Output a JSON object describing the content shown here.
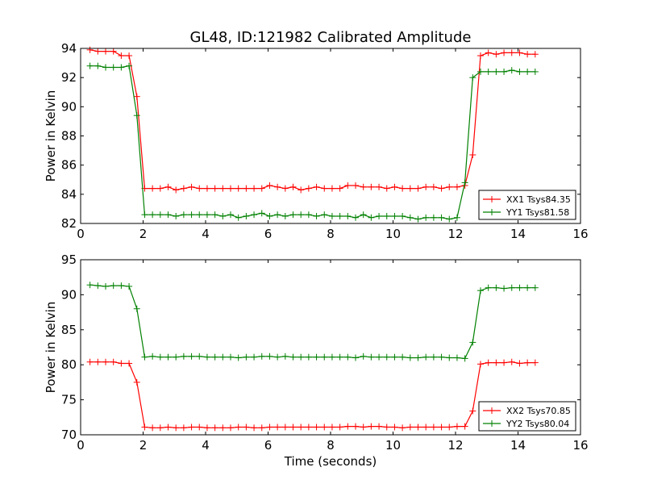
{
  "title": "GL48, ID:121982 Calibrated Amplitude",
  "colors": {
    "red": "#ff0000",
    "green": "#008000"
  },
  "chart_data": [
    {
      "type": "line",
      "xlabel": "",
      "ylabel": "Power in Kelvin",
      "xlim": [
        0,
        16
      ],
      "ylim": [
        82,
        94
      ],
      "xticks": [
        "0",
        "2",
        "4",
        "6",
        "8",
        "10",
        "12",
        "14",
        "16"
      ],
      "yticks": [
        "82",
        "84",
        "86",
        "88",
        "90",
        "92",
        "94"
      ],
      "legend_position": "lower-right",
      "x": [
        0.3,
        0.55,
        0.8,
        1.05,
        1.3,
        1.55,
        1.8,
        2.05,
        2.3,
        2.55,
        2.8,
        3.05,
        3.3,
        3.55,
        3.8,
        4.05,
        4.3,
        4.55,
        4.8,
        5.05,
        5.3,
        5.55,
        5.8,
        6.05,
        6.3,
        6.55,
        6.8,
        7.05,
        7.3,
        7.55,
        7.8,
        8.05,
        8.3,
        8.55,
        8.8,
        9.05,
        9.3,
        9.55,
        9.8,
        10.05,
        10.3,
        10.55,
        10.8,
        11.05,
        11.3,
        11.55,
        11.8,
        12.05,
        12.3,
        12.55,
        12.8,
        13.05,
        13.3,
        13.55,
        13.8,
        14.05,
        14.3,
        14.55
      ],
      "series": [
        {
          "name": "XX1 Tsys84.35",
          "color": "red",
          "values": [
            93.9,
            93.8,
            93.8,
            93.8,
            93.5,
            93.5,
            90.7,
            84.4,
            84.4,
            84.4,
            84.5,
            84.3,
            84.4,
            84.5,
            84.4,
            84.4,
            84.4,
            84.4,
            84.4,
            84.4,
            84.4,
            84.4,
            84.4,
            84.6,
            84.5,
            84.4,
            84.5,
            84.3,
            84.4,
            84.5,
            84.4,
            84.4,
            84.4,
            84.6,
            84.6,
            84.5,
            84.5,
            84.5,
            84.4,
            84.5,
            84.4,
            84.4,
            84.4,
            84.5,
            84.5,
            84.4,
            84.5,
            84.5,
            84.6,
            86.7,
            93.5,
            93.7,
            93.6,
            93.7,
            93.7,
            93.7,
            93.6,
            93.6
          ]
        },
        {
          "name": "YY1 Tsys81.58",
          "color": "green",
          "values": [
            92.8,
            92.8,
            92.7,
            92.7,
            92.7,
            92.8,
            89.4,
            82.6,
            82.6,
            82.6,
            82.6,
            82.5,
            82.6,
            82.6,
            82.6,
            82.6,
            82.6,
            82.5,
            82.6,
            82.4,
            82.5,
            82.6,
            82.7,
            82.5,
            82.6,
            82.5,
            82.6,
            82.6,
            82.6,
            82.5,
            82.6,
            82.5,
            82.5,
            82.5,
            82.4,
            82.6,
            82.4,
            82.5,
            82.5,
            82.5,
            82.5,
            82.4,
            82.3,
            82.4,
            82.4,
            82.4,
            82.3,
            82.4,
            84.8,
            92.0,
            92.4,
            92.4,
            92.4,
            92.4,
            92.5,
            92.4,
            92.4,
            92.4
          ]
        }
      ]
    },
    {
      "type": "line",
      "xlabel": "Time (seconds)",
      "ylabel": "Power in Kelvin",
      "xlim": [
        0,
        16
      ],
      "ylim": [
        70,
        95
      ],
      "xticks": [
        "0",
        "2",
        "4",
        "6",
        "8",
        "10",
        "12",
        "14",
        "16"
      ],
      "yticks": [
        "70",
        "75",
        "80",
        "85",
        "90",
        "95"
      ],
      "legend_position": "lower-right",
      "x": [
        0.3,
        0.55,
        0.8,
        1.05,
        1.3,
        1.55,
        1.8,
        2.05,
        2.3,
        2.55,
        2.8,
        3.05,
        3.3,
        3.55,
        3.8,
        4.05,
        4.3,
        4.55,
        4.8,
        5.05,
        5.3,
        5.55,
        5.8,
        6.05,
        6.3,
        6.55,
        6.8,
        7.05,
        7.3,
        7.55,
        7.8,
        8.05,
        8.3,
        8.55,
        8.8,
        9.05,
        9.3,
        9.55,
        9.8,
        10.05,
        10.3,
        10.55,
        10.8,
        11.05,
        11.3,
        11.55,
        11.8,
        12.05,
        12.3,
        12.55,
        12.8,
        13.05,
        13.3,
        13.55,
        13.8,
        14.05,
        14.3,
        14.55
      ],
      "series": [
        {
          "name": "XX2 Tsys70.85",
          "color": "red",
          "values": [
            80.4,
            80.4,
            80.4,
            80.4,
            80.2,
            80.2,
            77.5,
            71.1,
            71.0,
            71.0,
            71.1,
            71.0,
            71.0,
            71.1,
            71.1,
            71.0,
            71.0,
            71.0,
            71.0,
            71.1,
            71.1,
            71.0,
            71.0,
            71.1,
            71.1,
            71.1,
            71.1,
            71.1,
            71.1,
            71.1,
            71.1,
            71.1,
            71.1,
            71.2,
            71.2,
            71.1,
            71.2,
            71.2,
            71.1,
            71.1,
            71.0,
            71.1,
            71.1,
            71.1,
            71.1,
            71.1,
            71.1,
            71.2,
            71.2,
            73.4,
            80.1,
            80.3,
            80.3,
            80.3,
            80.4,
            80.2,
            80.3,
            80.3
          ]
        },
        {
          "name": "YY2 Tsys80.04",
          "color": "green",
          "values": [
            91.4,
            91.3,
            91.2,
            91.3,
            91.3,
            91.2,
            88.0,
            81.1,
            81.2,
            81.1,
            81.1,
            81.1,
            81.2,
            81.2,
            81.2,
            81.1,
            81.1,
            81.1,
            81.1,
            81.0,
            81.1,
            81.1,
            81.2,
            81.2,
            81.1,
            81.2,
            81.1,
            81.1,
            81.1,
            81.1,
            81.1,
            81.1,
            81.1,
            81.1,
            81.0,
            81.2,
            81.1,
            81.1,
            81.1,
            81.1,
            81.1,
            81.0,
            81.0,
            81.1,
            81.1,
            81.1,
            81.0,
            81.0,
            80.9,
            83.2,
            90.6,
            91.0,
            91.0,
            90.9,
            91.0,
            91.0,
            91.0,
            91.0
          ]
        }
      ]
    }
  ]
}
